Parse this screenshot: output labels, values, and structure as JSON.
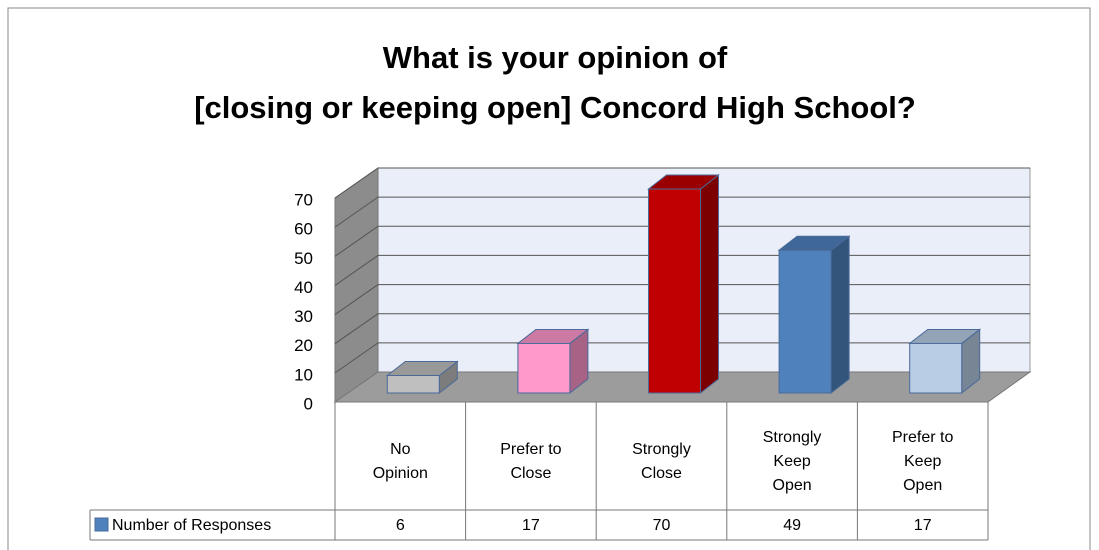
{
  "chart_data": {
    "type": "bar3d",
    "title": [
      "What is your opinion of",
      "[closing or keeping open] Concord High School?"
    ],
    "categories": [
      "No Opinion",
      "Prefer to Close",
      "Strongly Close",
      "Strongly Keep Open",
      "Prefer to Keep Open"
    ],
    "series": [
      {
        "name": "Number of Responses",
        "color": "#4f81bd",
        "colors": [
          "#bfbfbf",
          "#ff99cc",
          "#c00000",
          "#4f81bd",
          "#b9cde5"
        ],
        "values": [
          6,
          17,
          70,
          49,
          17
        ]
      }
    ],
    "ylim": [
      0,
      70
    ],
    "yticks": [
      0,
      10,
      20,
      30,
      40,
      50,
      60,
      70
    ],
    "grid": true,
    "data_table": true
  }
}
